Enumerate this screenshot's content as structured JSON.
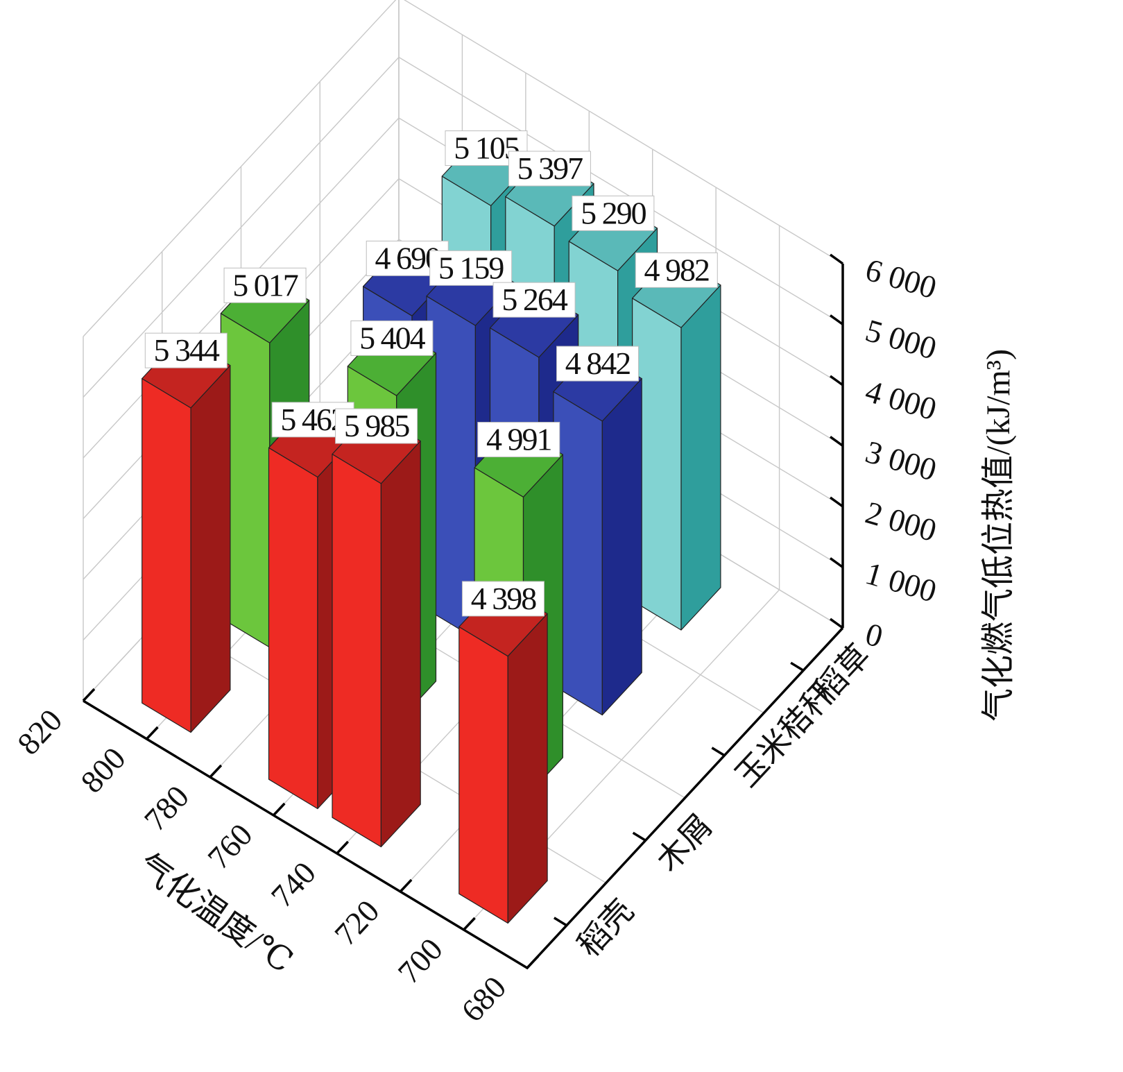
{
  "chart_data": {
    "type": "bar3d",
    "x_axis": {
      "label": "气化温度/℃",
      "ticks": [
        "820",
        "800",
        "780",
        "760",
        "740",
        "720",
        "700",
        "680"
      ],
      "range": [
        680,
        820
      ]
    },
    "depth_axis": {
      "categories": [
        "稻壳",
        "木屑",
        "玉米秸秆",
        "稻草"
      ]
    },
    "z_axis": {
      "label": "气化燃气低位热值/(kJ/m³)",
      "ticks": [
        "0",
        "1 000",
        "2 000",
        "3 000",
        "4 000",
        "5 000",
        "6 000"
      ],
      "range": [
        0,
        6000
      ]
    },
    "grid": true,
    "series": [
      {
        "category": "稻壳",
        "color": "#ee2b24",
        "shade": "#9c1a18",
        "top": "#c42420",
        "points": [
          {
            "x": 800,
            "value": 5344,
            "label": "5 344"
          },
          {
            "x": 760,
            "value": 5462,
            "label": "5 462"
          },
          {
            "x": 740,
            "value": 5985,
            "label": "5 985"
          },
          {
            "x": 700,
            "value": 4398,
            "label": "4 398"
          }
        ]
      },
      {
        "category": "木屑",
        "color": "#6cc63d",
        "shade": "#2f8f2a",
        "top": "#4caf35",
        "points": [
          {
            "x": 800,
            "value": 5017,
            "label": "5 017"
          },
          {
            "x": 760,
            "value": 5404,
            "label": "5 404"
          },
          {
            "x": 720,
            "value": 4991,
            "label": "4 991"
          }
        ]
      },
      {
        "category": "玉米秸秆",
        "color": "#3b4fb8",
        "shade": "#1e2a8c",
        "top": "#2c3aa3",
        "points": [
          {
            "x": 780,
            "value": 4690,
            "label": "4 690"
          },
          {
            "x": 760,
            "value": 5159,
            "label": "5 159"
          },
          {
            "x": 740,
            "value": 5264,
            "label": "5 264"
          },
          {
            "x": 720,
            "value": 4842,
            "label": "4 842"
          }
        ]
      },
      {
        "category": "稻草",
        "color": "#82d3d2",
        "shade": "#2f9e9c",
        "top": "#5ab9b8",
        "points": [
          {
            "x": 780,
            "value": 5105,
            "label": "5 105"
          },
          {
            "x": 760,
            "value": 5397,
            "label": "5 397"
          },
          {
            "x": 740,
            "value": 5290,
            "label": "5 290"
          },
          {
            "x": 720,
            "value": 4982,
            "label": "4 982"
          }
        ]
      }
    ]
  }
}
